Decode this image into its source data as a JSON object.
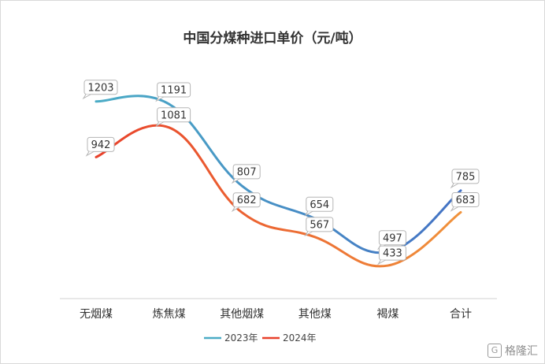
{
  "chart_data": {
    "type": "line",
    "title": "中国分煤种进口单价（元/吨）",
    "categories": [
      "无烟煤",
      "炼焦煤",
      "其他烟煤",
      "其他煤",
      "褐煤",
      "合计"
    ],
    "series": [
      {
        "name": "2023年",
        "values": [
          1203,
          1191,
          807,
          654,
          497,
          785
        ],
        "color_start": "#4bacc6",
        "color_end": "#4472c4"
      },
      {
        "name": "2024年",
        "values": [
          942,
          1081,
          682,
          567,
          433,
          683
        ],
        "color_start": "#e8412b",
        "color_end": "#f0923b"
      }
    ],
    "legend_position": "bottom",
    "grid": false,
    "xlabel": "",
    "ylabel": ""
  },
  "watermark": {
    "logo_letter": "G",
    "text": "格隆汇"
  }
}
